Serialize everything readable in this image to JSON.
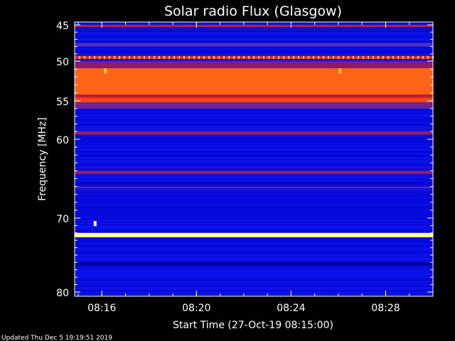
{
  "chart_data": {
    "type": "heatmap",
    "title": "Solar radio Flux (Glasgow)",
    "xlabel": "Start Time (27-Oct-19 08:15:00)",
    "ylabel": "Frequency [MHz]",
    "x_unit": "time",
    "xlim": [
      "08:14:51",
      "08:30:00"
    ],
    "ylim": [
      80,
      45
    ],
    "x_ticks": [
      "08:16",
      "08:20",
      "08:24",
      "08:28"
    ],
    "y_ticks": [
      45,
      50,
      55,
      60,
      70,
      80
    ],
    "colormap": [
      "#00006a",
      "#0000d8",
      "#2a3cff",
      "#8a1a6a",
      "#e0201a",
      "#ff3a10",
      "#ff9a20",
      "#ffff80",
      "#ffffff"
    ],
    "background_level": 0.15,
    "bands": [
      {
        "f_from": 45.0,
        "f_to": 45.3,
        "level": 0.45
      },
      {
        "f_from": 47.5,
        "f_to": 48.0,
        "level": 0.3
      },
      {
        "f_from": 49.3,
        "f_to": 49.7,
        "level": 0.55
      },
      {
        "f_from": 50.0,
        "f_to": 50.9,
        "level": 0.38
      },
      {
        "f_from": 50.9,
        "f_to": 54.2,
        "level": 0.68
      },
      {
        "f_from": 54.2,
        "f_to": 54.6,
        "level": 0.45
      },
      {
        "f_from": 54.6,
        "f_to": 55.2,
        "level": 0.64
      },
      {
        "f_from": 55.2,
        "f_to": 56.0,
        "level": 0.34
      },
      {
        "f_from": 59.0,
        "f_to": 59.4,
        "level": 0.4
      },
      {
        "f_from": 64.0,
        "f_to": 64.4,
        "level": 0.4
      },
      {
        "f_from": 66.0,
        "f_to": 66.2,
        "level": 0.32
      },
      {
        "f_from": 72.0,
        "f_to": 72.6,
        "level": 0.9
      },
      {
        "f_from": 76.0,
        "f_to": 76.4,
        "level": 0.05
      }
    ],
    "spots": [
      {
        "time": "08:15:43",
        "freq": 70.7,
        "level": 0.95
      },
      {
        "time": "08:16:09",
        "freq": 51.2,
        "level": 0.8
      },
      {
        "time": "08:26:04",
        "freq": 51.2,
        "level": 0.8
      }
    ]
  },
  "footer": {
    "updated": "Updated Thu Dec  5 19:19:51 2019"
  }
}
